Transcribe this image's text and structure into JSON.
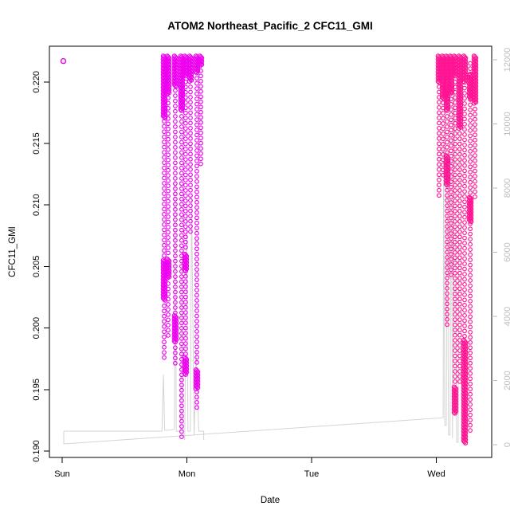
{
  "chart_data": {
    "type": "scatter",
    "title": "ATOM2 Northeast_Pacific_2 CFC11_GMI",
    "xlabel": "Date",
    "ylabel": "CFC11_GMI",
    "marker": "open-circle",
    "grid": false,
    "x_axis": {
      "tick_days": [
        0,
        1,
        2,
        3
      ],
      "tick_labels": [
        "Sun",
        "Mon",
        "Tue",
        "Wed"
      ],
      "range_days": [
        -0.10224,
        3.44409
      ]
    },
    "y_left_axis": {
      "ticks": [
        0.19,
        0.195,
        0.2,
        0.205,
        0.21,
        0.215,
        0.22
      ],
      "tick_labels": [
        "0.190",
        "0.195",
        "0.200",
        "0.205",
        "0.210",
        "0.215",
        "0.220"
      ],
      "range": [
        0.189482,
        0.222902
      ]
    },
    "y_right_axis": {
      "ticks": [
        0,
        2000,
        4000,
        6000,
        8000,
        10000,
        12000
      ],
      "tick_labels": [
        "0",
        "2000",
        "4000",
        "6000",
        "8000",
        "10000",
        "12000"
      ],
      "range": [
        -397.5,
        12422
      ]
    },
    "colors": {
      "magenta": "#EE00EE",
      "deep_pink": "#FF1493",
      "line_gray": "#D4D4D4",
      "right_axis_gray": "#BEBEBE",
      "axis_black": "#000000"
    },
    "lone_point": {
      "day": 0.0096,
      "value": 0.2217,
      "color": "magenta"
    },
    "strands": [
      {
        "day": 0.818,
        "color": "magenta",
        "segments": [
          [
            "dense",
            0.2221,
            0.217
          ],
          [
            "open",
            0.2168,
            0.2057
          ],
          [
            "dense",
            0.2055,
            0.2022
          ],
          [
            "open",
            0.2018,
            0.1975
          ]
        ]
      },
      {
        "day": 0.85,
        "color": "magenta",
        "segments": [
          [
            "dense",
            0.2221,
            0.219
          ],
          [
            "open",
            0.2187,
            0.2058
          ],
          [
            "dense",
            0.2056,
            0.204
          ],
          [
            "open",
            0.2036,
            0.1992
          ]
        ]
      },
      {
        "day": 0.907,
        "color": "magenta",
        "segments": [
          [
            "dense",
            0.2221,
            0.2196
          ],
          [
            "open",
            0.2193,
            0.2012
          ],
          [
            "dense",
            0.201,
            0.1988
          ],
          [
            "open",
            0.1984,
            0.1968
          ]
        ]
      },
      {
        "day": 0.958,
        "color": "magenta",
        "segments": [
          [
            "dense",
            0.2221,
            0.2176
          ],
          [
            "open",
            0.2172,
            0.1908
          ]
        ]
      },
      {
        "day": 0.99,
        "color": "magenta",
        "segments": [
          [
            "dense",
            0.2221,
            0.2204
          ],
          [
            "open",
            0.22,
            0.2062
          ],
          [
            "dense",
            0.206,
            0.2046
          ],
          [
            "open",
            0.2042,
            0.1978
          ],
          [
            "dense",
            0.1976,
            0.1962
          ]
        ]
      },
      {
        "day": 1.029,
        "color": "magenta",
        "segments": [
          [
            "dense",
            0.2221,
            0.22
          ],
          [
            "open",
            0.2196,
            0.2076
          ]
        ]
      },
      {
        "day": 1.08,
        "color": "magenta",
        "segments": [
          [
            "dense",
            0.2221,
            0.2207
          ],
          [
            "open",
            0.2203,
            0.1968
          ],
          [
            "dense",
            0.1966,
            0.195
          ],
          [
            "open",
            0.1948,
            0.1935
          ]
        ]
      },
      {
        "day": 1.112,
        "color": "magenta",
        "segments": [
          [
            "dense",
            0.2221,
            0.2213
          ],
          [
            "open",
            0.2209,
            0.213
          ]
        ]
      },
      {
        "day": 3.022,
        "color": "deep_pink",
        "segments": [
          [
            "dense",
            0.2221,
            0.2199
          ],
          [
            "open",
            0.2196,
            0.2106
          ]
        ]
      },
      {
        "day": 3.054,
        "color": "deep_pink",
        "segments": [
          [
            "dense",
            0.2221,
            0.2186
          ],
          [
            "open",
            0.2183,
            0.212
          ]
        ]
      },
      {
        "day": 3.086,
        "color": "deep_pink",
        "segments": [
          [
            "dense",
            0.2221,
            0.2176
          ],
          [
            "open",
            0.2172,
            0.2142
          ],
          [
            "dense",
            0.214,
            0.2116
          ],
          [
            "open",
            0.2112,
            0.2002
          ]
        ]
      },
      {
        "day": 3.118,
        "color": "deep_pink",
        "segments": [
          [
            "dense",
            0.2221,
            0.219
          ],
          [
            "open",
            0.2186,
            0.2042
          ]
        ]
      },
      {
        "day": 3.15,
        "color": "deep_pink",
        "segments": [
          [
            "dense",
            0.2221,
            0.2204
          ],
          [
            "open",
            0.22,
            0.1956
          ],
          [
            "dense",
            0.1952,
            0.193
          ]
        ]
      },
      {
        "day": 3.188,
        "color": "deep_pink",
        "segments": [
          [
            "dense",
            0.2221,
            0.2162
          ],
          [
            "open",
            0.2158,
            0.1956
          ]
        ]
      },
      {
        "day": 3.227,
        "color": "deep_pink",
        "segments": [
          [
            "dense",
            0.2221,
            0.2199
          ],
          [
            "open",
            0.2195,
            0.1992
          ],
          [
            "dense",
            0.199,
            0.1906
          ]
        ]
      },
      {
        "day": 3.272,
        "color": "deep_pink",
        "segments": [
          [
            "open",
            0.2215,
            0.1916
          ],
          [
            "dense",
            0.2206,
            0.2186
          ],
          [
            "dense",
            0.2106,
            0.2086
          ]
        ]
      },
      {
        "day": 3.31,
        "color": "deep_pink",
        "segments": [
          [
            "dense",
            0.2221,
            0.2182
          ],
          [
            "open",
            0.2178,
            0.2106
          ]
        ]
      }
    ],
    "line_series": {
      "name": "secondary-trace",
      "color": "line_gray",
      "segments": [
        {
          "points": [
            [
              0.013,
              422
            ],
            [
              0.8,
              422
            ],
            [
              0.812,
              2190
            ],
            [
              0.822,
              450
            ],
            [
              0.855,
              450
            ],
            [
              0.9,
              480
            ],
            [
              0.905,
              8270
            ],
            [
              0.915,
              420
            ],
            [
              0.952,
              420
            ],
            [
              0.96,
              6160
            ],
            [
              0.972,
              340
            ],
            [
              0.983,
              150
            ],
            [
              0.998,
              7650
            ],
            [
              1.008,
              420
            ],
            [
              1.028,
              420
            ],
            [
              1.038,
              7690
            ],
            [
              1.058,
              300
            ],
            [
              1.075,
              2940
            ],
            [
              1.095,
              420
            ],
            [
              1.135,
              422
            ],
            [
              1.135,
              150
            ]
          ]
        },
        {
          "points": [
            [
              0.013,
              422
            ],
            [
              0.013,
              25
            ],
            [
              3.055,
              840
            ],
            [
              3.058,
              9640
            ],
            [
              3.068,
              600
            ],
            [
              3.08,
              600
            ],
            [
              3.086,
              9260
            ],
            [
              3.098,
              300
            ],
            [
              3.11,
              300
            ],
            [
              3.118,
              8890
            ],
            [
              3.13,
              200
            ],
            [
              3.142,
              11400
            ],
            [
              3.15,
              8400
            ],
            [
              3.163,
              75
            ],
            [
              3.175,
              75
            ],
            [
              3.18,
              7800
            ],
            [
              3.195,
              9950
            ],
            [
              3.205,
              150
            ],
            [
              3.215,
              150
            ],
            [
              3.222,
              2000
            ],
            [
              3.235,
              60
            ]
          ]
        }
      ]
    }
  }
}
